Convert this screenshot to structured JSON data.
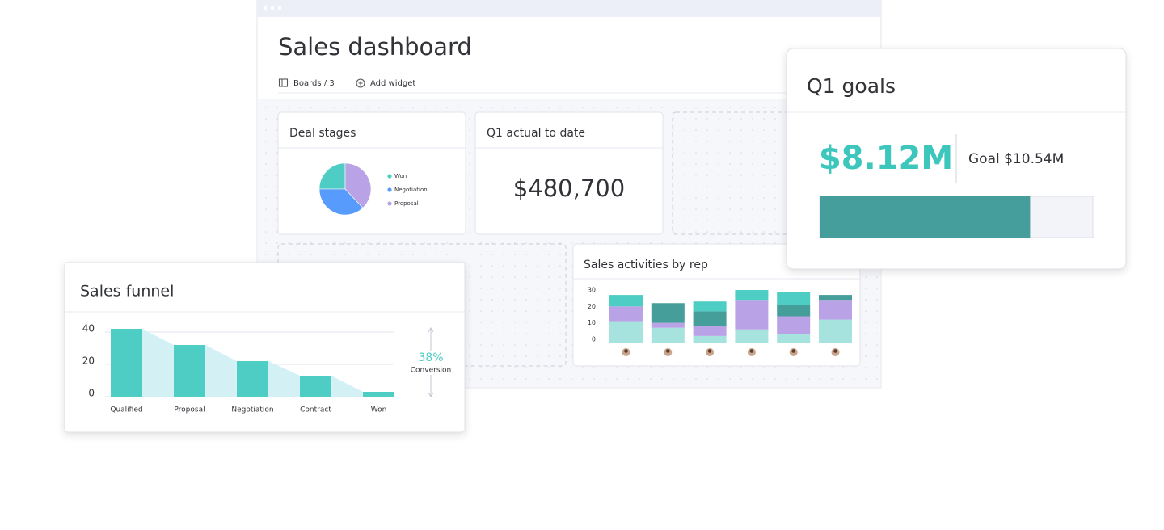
{
  "dashboard": {
    "title": "Sales dashboard",
    "toolbar": [
      "Boards / 3",
      "Add widget"
    ]
  },
  "cards": {
    "q1_actual": {
      "title": "Q1 actual to date",
      "value": "$480,700"
    }
  },
  "chart_data": [
    {
      "type": "pie",
      "title": "Deal stages",
      "categories": [
        "Won",
        "Negotiation",
        "Proposal"
      ],
      "values": [
        25,
        37,
        38
      ],
      "colors": [
        "#4ecdc4",
        "#579bfc",
        "#b9a2e6"
      ]
    },
    {
      "type": "bar",
      "title": "Sales funnel",
      "categories": [
        "Qualified",
        "Proposal",
        "Negotiation",
        "Contract",
        "Won"
      ],
      "values": [
        42,
        32,
        22,
        13,
        3
      ],
      "color": "#4ecdc4",
      "area_color": "#d3f1f5",
      "ylim": [
        0,
        43
      ],
      "yticks": [
        0,
        20,
        40
      ],
      "grid": true,
      "annotation": {
        "value": "38%",
        "label": "Conversion"
      }
    },
    {
      "type": "stacked_bar",
      "title": "Sales activities by rep",
      "categories": [
        null,
        null,
        null,
        null,
        null,
        null
      ],
      "series": [
        {
          "color": "#a6e3de",
          "values": [
            13,
            9,
            4,
            8,
            5,
            14
          ]
        },
        {
          "color": "#b9a2e6",
          "values": [
            9,
            3,
            6,
            18,
            11,
            12
          ]
        },
        {
          "color": "#459e9a",
          "values": [
            0,
            12,
            9,
            0,
            7,
            3
          ]
        },
        {
          "color": "#4ecdc4",
          "values": [
            7,
            0,
            6,
            6,
            8,
            0
          ]
        }
      ],
      "ylim": [
        0,
        32
      ],
      "yticks": [
        0,
        10,
        20,
        30
      ]
    },
    {
      "type": "progress",
      "title": "Q1 goals",
      "value": 8.12,
      "value_label": "$8.12M",
      "goal": 10.54,
      "goal_label": "Goal $10.54M",
      "color": "#469e9c",
      "value_color": "#3cc6bc"
    }
  ]
}
